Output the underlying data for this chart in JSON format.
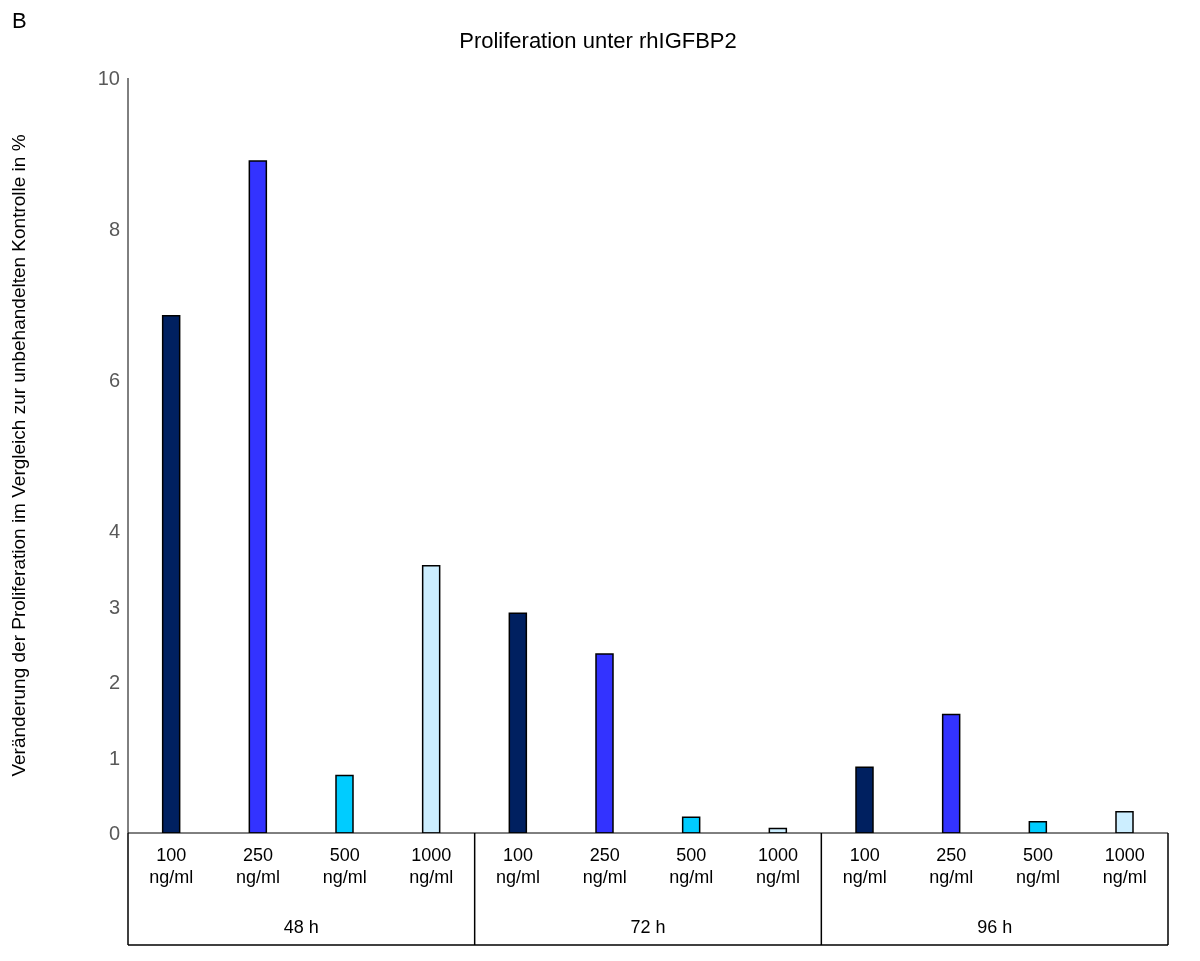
{
  "chart_data": {
    "type": "bar",
    "title": "Proliferation unter rhIGFBP2",
    "ylabel": "Veränderung der Proliferation im Vergleich zur  unbehandelten  Kontrolle in %",
    "categories": [
      "100 ng/ml",
      "250 ng/ml",
      "500 ng/ml",
      "1000 ng/ml",
      "100 ng/ml",
      "250 ng/ml",
      "500 ng/ml",
      "1000 ng/ml",
      "100 ng/ml",
      "250 ng/ml",
      "500 ng/ml",
      "1000 ng/ml"
    ],
    "values": [
      6.85,
      8.9,
      0.76,
      3.54,
      2.91,
      2.37,
      0.21,
      0.06,
      0.87,
      1.57,
      0.15,
      0.28
    ],
    "colors": [
      "#002060",
      "#3333ff",
      "#00ccff",
      "#cceeff",
      "#002060",
      "#3333ff",
      "#00ccff",
      "#cceeff",
      "#002060",
      "#3333ff",
      "#00ccff",
      "#cceeff"
    ],
    "ylim": [
      0,
      10
    ],
    "yticks": [
      0,
      1,
      2,
      3,
      4,
      6,
      8,
      10
    ],
    "grid": false,
    "legend": false,
    "annotations": [
      "B",
      "48 h",
      "72 h",
      "96 h"
    ]
  }
}
